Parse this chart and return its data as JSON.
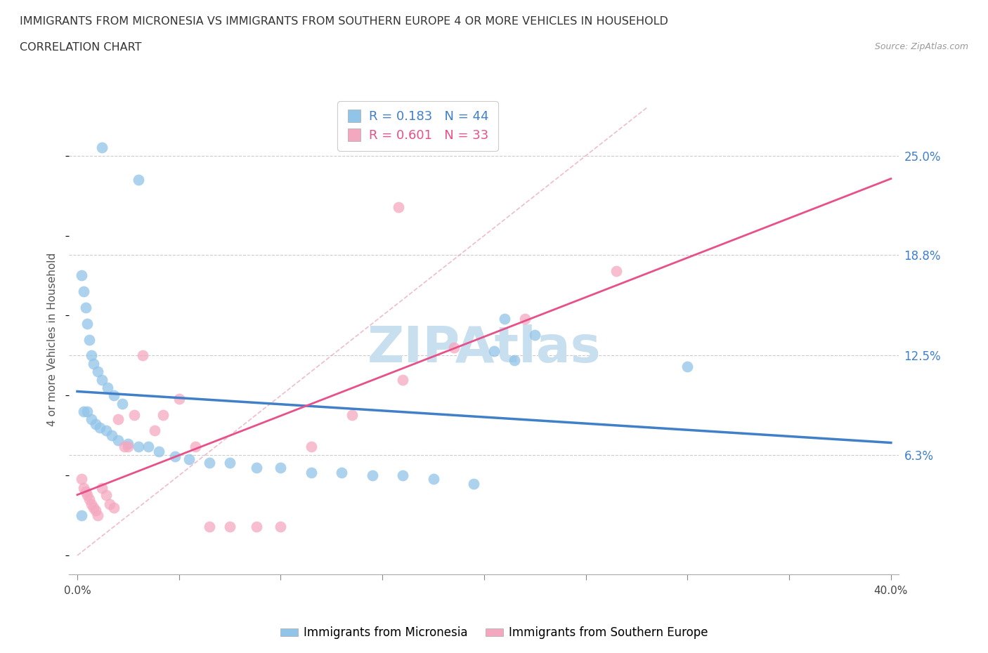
{
  "title_line1": "IMMIGRANTS FROM MICRONESIA VS IMMIGRANTS FROM SOUTHERN EUROPE 4 OR MORE VEHICLES IN HOUSEHOLD",
  "title_line2": "CORRELATION CHART",
  "source_text": "Source: ZipAtlas.com",
  "ylabel": "4 or more Vehicles in Household",
  "xlim": [
    0.0,
    0.4
  ],
  "ylim": [
    0.0,
    0.28
  ],
  "ytick_vals": [
    0.063,
    0.125,
    0.188,
    0.25
  ],
  "ytick_labels": [
    "6.3%",
    "12.5%",
    "18.8%",
    "25.0%"
  ],
  "blue_R": 0.183,
  "blue_N": 44,
  "pink_R": 0.601,
  "pink_N": 33,
  "blue_color": "#90c4e8",
  "pink_color": "#f4a8bf",
  "blue_line_color": "#4080c8",
  "pink_line_color": "#e8508a",
  "diag_color": "#e8a0b8",
  "watermark": "ZIPAtlas",
  "watermark_color": "#c8dff0",
  "blue_scatter_x": [
    0.012,
    0.03,
    0.002,
    0.003,
    0.004,
    0.005,
    0.006,
    0.007,
    0.008,
    0.01,
    0.012,
    0.015,
    0.018,
    0.022,
    0.003,
    0.005,
    0.007,
    0.009,
    0.011,
    0.014,
    0.017,
    0.02,
    0.025,
    0.03,
    0.035,
    0.04,
    0.048,
    0.055,
    0.065,
    0.075,
    0.088,
    0.1,
    0.115,
    0.13,
    0.145,
    0.16,
    0.175,
    0.195,
    0.21,
    0.225,
    0.205,
    0.215,
    0.3,
    0.002
  ],
  "blue_scatter_y": [
    0.255,
    0.235,
    0.175,
    0.165,
    0.155,
    0.145,
    0.135,
    0.125,
    0.12,
    0.115,
    0.11,
    0.105,
    0.1,
    0.095,
    0.09,
    0.09,
    0.085,
    0.082,
    0.08,
    0.078,
    0.075,
    0.072,
    0.07,
    0.068,
    0.068,
    0.065,
    0.062,
    0.06,
    0.058,
    0.058,
    0.055,
    0.055,
    0.052,
    0.052,
    0.05,
    0.05,
    0.048,
    0.045,
    0.148,
    0.138,
    0.128,
    0.122,
    0.118,
    0.025
  ],
  "pink_scatter_x": [
    0.002,
    0.003,
    0.004,
    0.005,
    0.006,
    0.007,
    0.008,
    0.009,
    0.01,
    0.012,
    0.014,
    0.016,
    0.018,
    0.02,
    0.023,
    0.025,
    0.028,
    0.032,
    0.038,
    0.042,
    0.05,
    0.058,
    0.065,
    0.075,
    0.088,
    0.1,
    0.115,
    0.135,
    0.16,
    0.185,
    0.22,
    0.265,
    0.158
  ],
  "pink_scatter_y": [
    0.048,
    0.042,
    0.04,
    0.038,
    0.035,
    0.032,
    0.03,
    0.028,
    0.025,
    0.042,
    0.038,
    0.032,
    0.03,
    0.085,
    0.068,
    0.068,
    0.088,
    0.125,
    0.078,
    0.088,
    0.098,
    0.068,
    0.018,
    0.018,
    0.018,
    0.018,
    0.068,
    0.088,
    0.11,
    0.13,
    0.148,
    0.178,
    0.218
  ]
}
